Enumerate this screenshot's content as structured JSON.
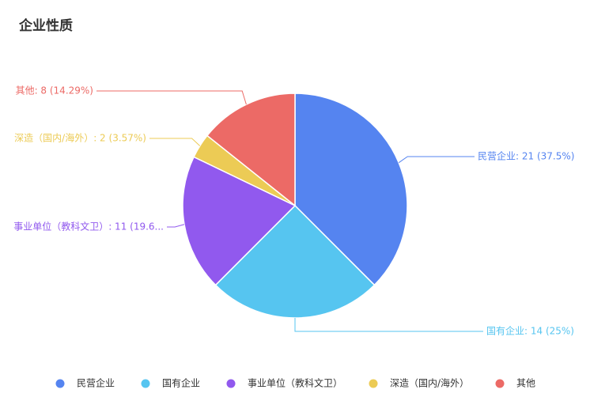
{
  "chart_data": {
    "type": "pie",
    "title": "企业性质",
    "categories": [
      "民营企业",
      "国有企业",
      "事业单位（教科文卫）",
      "深造（国内/海外）",
      "其他"
    ],
    "values": [
      21,
      14,
      11,
      2,
      8
    ],
    "value_labels": [
      "民营企业: 21 (37.5%)",
      "国有企业: 14 (25%)",
      "事业单位（教科文卫）: 11 (19.6...",
      "深造（国内/海外）: 2 (3.57%)",
      "其他: 8 (14.29%)"
    ],
    "colors": [
      "#5584f0",
      "#56c5f0",
      "#9159ee",
      "#eccb55",
      "#ec6a66"
    ]
  }
}
